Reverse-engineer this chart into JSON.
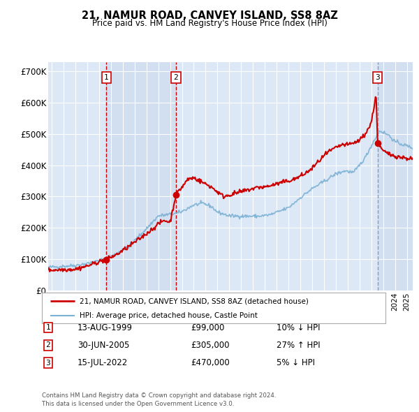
{
  "title1": "21, NAMUR ROAD, CANVEY ISLAND, SS8 8AZ",
  "title2": "Price paid vs. HM Land Registry's House Price Index (HPI)",
  "plot_bg_color": "#dce8f5",
  "transactions": [
    {
      "num": 1,
      "date_str": "13-AUG-1999",
      "price": 99000,
      "pct": "10%",
      "dir": "↓",
      "x": 1999.617
    },
    {
      "num": 2,
      "date_str": "30-JUN-2005",
      "price": 305000,
      "pct": "27%",
      "dir": "↑",
      "x": 2005.496
    },
    {
      "num": 3,
      "date_str": "15-JUL-2022",
      "price": 470000,
      "pct": "5%",
      "dir": "↓",
      "x": 2022.537
    }
  ],
  "legend_line1": "21, NAMUR ROAD, CANVEY ISLAND, SS8 8AZ (detached house)",
  "legend_line2": "HPI: Average price, detached house, Castle Point",
  "footer1": "Contains HM Land Registry data © Crown copyright and database right 2024.",
  "footer2": "This data is licensed under the Open Government Licence v3.0.",
  "ylim": [
    0,
    730000
  ],
  "yticks": [
    0,
    100000,
    200000,
    300000,
    400000,
    500000,
    600000,
    700000
  ],
  "ytick_labels": [
    "£0",
    "£100K",
    "£200K",
    "£300K",
    "£400K",
    "£500K",
    "£600K",
    "£700K"
  ],
  "xlim_start": 1994.7,
  "xlim_end": 2025.5,
  "hpi_color": "#7ab0d4",
  "price_color": "#cc0000",
  "vline_red_color": "#cc0000",
  "vline_gray_color": "#8899bb"
}
